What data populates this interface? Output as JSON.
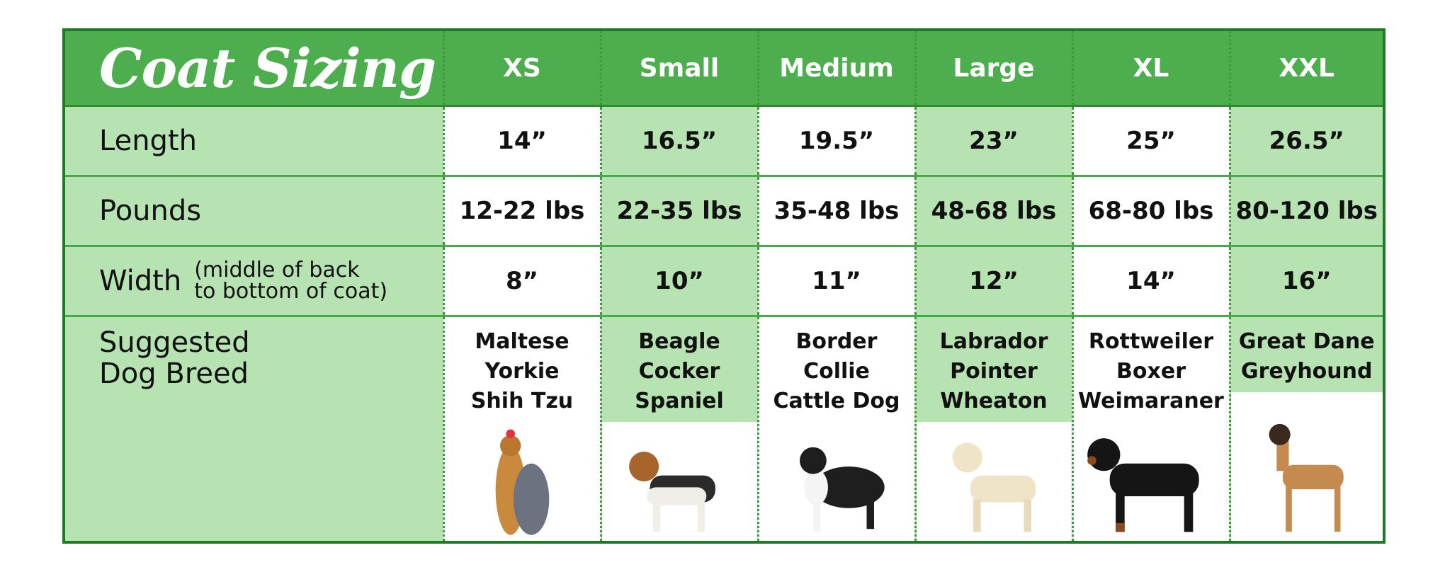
{
  "header": {
    "title": "Coat Sizing",
    "sizes": [
      "XS",
      "Small",
      "Medium",
      "Large",
      "XL",
      "XXL"
    ]
  },
  "rows": {
    "length": {
      "label": "Length",
      "values": [
        "14”",
        "16.5”",
        "19.5”",
        "23”",
        "25”",
        "26.5”"
      ]
    },
    "pounds": {
      "label": "Pounds",
      "values": [
        "12-22 lbs",
        "22-35 lbs",
        "35-48 lbs",
        "48-68 lbs",
        "68-80 lbs",
        "80-120 lbs"
      ]
    },
    "width": {
      "label": "Width",
      "sub_line1": "(middle of back",
      "sub_line2": "to bottom of coat)",
      "values": [
        "8”",
        "10”",
        "11”",
        "12”",
        "14”",
        "16”"
      ]
    },
    "breed": {
      "label_line1": "Suggested",
      "label_line2": "Dog Breed",
      "values": [
        [
          "Maltese",
          "Yorkie",
          "Shih Tzu"
        ],
        [
          "Beagle",
          "Cocker",
          "Spaniel"
        ],
        [
          "Border",
          "Collie",
          "Cattle Dog"
        ],
        [
          "Labrador",
          "Pointer",
          "Wheaton"
        ],
        [
          "Rottweiler",
          "Boxer",
          "Weimaraner"
        ],
        [
          "Great Dane",
          "Greyhound"
        ]
      ]
    }
  },
  "dog_photos": [
    "yorkie-photo",
    "beagle-photo",
    "border-collie-photo",
    "labrador-photo",
    "rottweiler-photo",
    "great-dane-photo"
  ],
  "colors": {
    "header_green": "#4cae4c",
    "light_green": "#b6e3b1",
    "border_green": "#1f7a24"
  }
}
